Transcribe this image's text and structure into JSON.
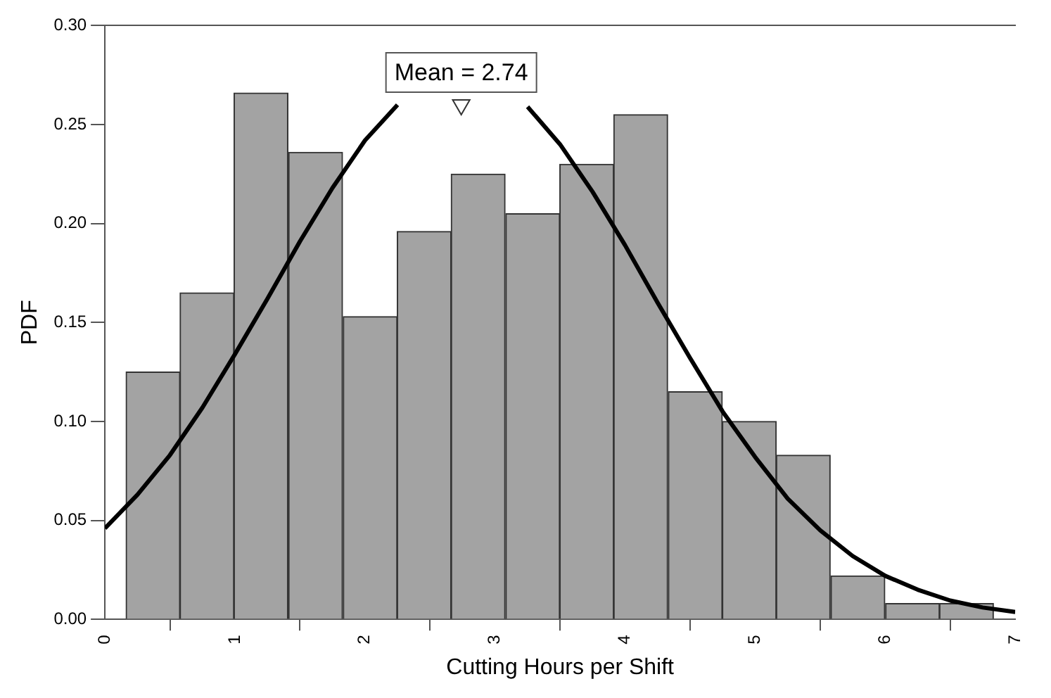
{
  "chart_data": {
    "type": "histogram",
    "xlabel": "Cutting Hours per Shift",
    "ylabel": "PDF",
    "series": [
      {
        "type": "histogram",
        "color": "#a3a3a3",
        "bins": [
          0.16,
          0.58,
          0.99,
          1.41,
          1.83,
          2.25,
          2.66,
          3.08,
          3.5,
          3.91,
          4.33,
          4.75,
          5.16,
          5.58,
          6.0,
          6.42,
          6.83
        ],
        "values": [
          0.125,
          0.165,
          0.266,
          0.236,
          0.153,
          0.196,
          0.225,
          0.205,
          0.23,
          0.255,
          0.115,
          0.1,
          0.083,
          0.022,
          0.008,
          0.008
        ]
      },
      {
        "type": "line",
        "color": "#000000",
        "x": [
          0,
          0.25,
          0.5,
          0.75,
          1,
          1.25,
          1.5,
          1.75,
          2,
          2.25,
          2.5,
          2.74,
          3,
          3.25,
          3.5,
          3.75,
          4,
          4.25,
          4.5,
          4.75,
          5,
          5.25,
          5.5,
          5.75,
          6,
          6.25,
          6.5,
          6.75,
          7
        ],
        "values": [
          0.046,
          0.063,
          0.083,
          0.107,
          0.134,
          0.162,
          0.191,
          0.218,
          0.242,
          0.26,
          null,
          null,
          null,
          0.259,
          0.24,
          0.216,
          0.189,
          0.16,
          0.132,
          0.105,
          0.082,
          0.061,
          0.045,
          0.032,
          0.022,
          0.015,
          0.0095,
          0.006,
          0.0037
        ]
      },
      {
        "type": "scatter",
        "color": "#ffffff",
        "marker": "triangle",
        "x": [
          2.74
        ],
        "values": [
          0.26
        ]
      }
    ],
    "xlim": [
      0,
      7
    ],
    "xticks": [
      0,
      1,
      2,
      3,
      4,
      5,
      6,
      7
    ],
    "ylim": [
      0,
      0.3
    ],
    "yticks": [
      {
        "value": 0,
        "label": "0.00"
      },
      {
        "value": 0.05,
        "label": "0.05"
      },
      {
        "value": 0.1,
        "label": "0.10"
      },
      {
        "value": 0.15,
        "label": "0.15"
      },
      {
        "value": 0.2,
        "label": "0.20"
      },
      {
        "value": 0.25,
        "label": "0.25"
      },
      {
        "value": 0.3,
        "label": "0.30"
      }
    ],
    "grid": false,
    "legend": false,
    "marker": "none",
    "line_style": "solid",
    "annotations": [
      {
        "text": "Mean = 2.74",
        "x": 2.74,
        "y": 0.26
      }
    ]
  }
}
